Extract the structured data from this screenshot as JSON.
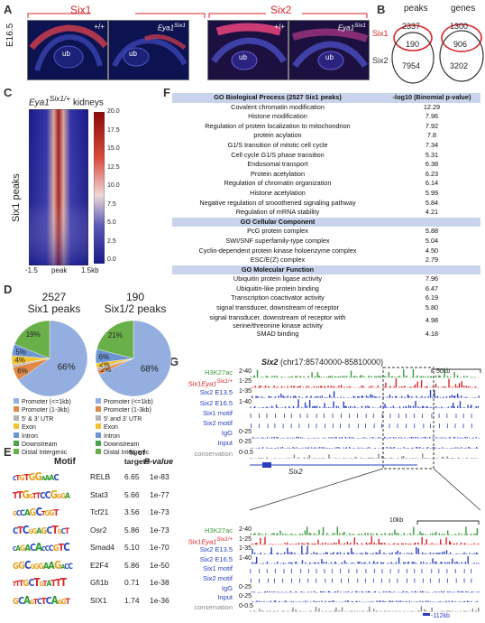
{
  "panels": {
    "A": "A",
    "B": "B",
    "C": "C",
    "D": "D",
    "E": "E",
    "F": "F",
    "G": "G"
  },
  "panelA": {
    "stage": "E16.5",
    "six1_label": "Six1",
    "six2_label": "Six2",
    "wt": "+/+",
    "mut_prefix": "Eya1",
    "mut_sup": "Six1",
    "ub": "ub"
  },
  "panelB": {
    "peaks_title": "peaks",
    "genes_title": "genes",
    "six1_label": "Six1",
    "six2_label": "Six2",
    "peaks": {
      "six1_only": "2337",
      "overlap": "190",
      "six2_only": "7954"
    },
    "genes": {
      "six1_only": "1300",
      "overlap": "906",
      "six2_only": "3202"
    }
  },
  "panelC": {
    "title_prefix": "Eya1",
    "title_sup": "Six1/+",
    "title_suffix": " kidneys",
    "ylabel": "Six1 peaks",
    "x_left": "-1.5",
    "x_mid": "peak",
    "x_right": "1.5kb",
    "colorbar_ticks": [
      "20.0",
      "17.5",
      "15.0",
      "12.5",
      "10.0",
      "7.5",
      "5.0",
      "2.5",
      "0.0"
    ]
  },
  "chart_data": [
    {
      "type": "pie",
      "title": "2527 Six1 peaks",
      "title_num": "2527",
      "title_text": "Six1 peaks",
      "categories": [
        "Promoter (<=1kb)",
        "Promoter (1-3kb)",
        "5' & 3' UTR",
        "Exon",
        "Intron",
        "Downstream",
        "Distal Intergenic"
      ],
      "values": [
        66,
        6,
        1,
        4,
        5,
        0,
        19
      ],
      "labels": [
        "66%",
        "6%",
        "",
        "4%",
        "5%",
        "",
        "19%"
      ],
      "colors": [
        "#94aee0",
        "#e2894a",
        "#b3b3b3",
        "#f2c230",
        "#6d95d4",
        "#4aa24a",
        "#6ab04a"
      ]
    },
    {
      "type": "pie",
      "title": "190 Six1/2 peaks",
      "title_num": "190",
      "title_text": "Six1/2 peaks",
      "categories": [
        "Promoter (<=1kb)",
        "Promoter (1-3kb)",
        "5' and 3' UTR",
        "Exon",
        "Intron",
        "Downstream",
        "Distal Intergenic"
      ],
      "values": [
        68,
        2,
        1,
        2,
        6,
        0,
        21
      ],
      "labels": [
        "68%",
        "2%",
        "",
        "2%",
        "6%",
        "",
        "21%"
      ],
      "colors": [
        "#94aee0",
        "#e2894a",
        "#b3b3b3",
        "#f2c230",
        "#6d95d4",
        "#4aa24a",
        "#6ab04a"
      ]
    }
  ],
  "legend1": [
    "Promoter (<=1kb)",
    "Promoter (1-3kb)",
    "5' & 3' UTR",
    "Exon",
    "Intron",
    "Downstream",
    "Distal Intergenic"
  ],
  "legend2": [
    "Promoter (<=1kb)",
    "Promoter (1-3kb)",
    "5' and 3' UTR",
    "Exon",
    "Intron",
    "Downstream",
    "Distal Intergenic"
  ],
  "panelE": {
    "headers": {
      "motif": "Motif",
      "pct1": "% of",
      "pct2": "targets",
      "pval": "P-value"
    },
    "rows": [
      {
        "logo": "CTGTGGAAAC",
        "name": "RELB",
        "pct": "6.65",
        "p": "1e-83"
      },
      {
        "logo": "TTGGTTCCGGGA",
        "name": "Stat3",
        "pct": "5.66",
        "p": "1e-77"
      },
      {
        "logo": "GCCAGCTGGT",
        "name": "Tcf21",
        "pct": "3.56",
        "p": "1e-73"
      },
      {
        "logo": "CTCGGAGCTGCT",
        "name": "Osr2",
        "pct": "5.86",
        "p": "1e-73"
      },
      {
        "logo": "CAGACACCCGTC",
        "name": "Smad4",
        "pct": "5.10",
        "p": "1e-70"
      },
      {
        "logo": "GGCGGGAAGACC",
        "name": "E2F4",
        "pct": "5.86",
        "p": "1e-50"
      },
      {
        "logo": "TTTGCTGTATTT",
        "name": "Gfi1b",
        "pct": "0.71",
        "p": "1e-38"
      },
      {
        "logo": "GCAGTCTCAGGT",
        "name": "SIX1",
        "pct": "1.74",
        "p": "1e-36"
      }
    ]
  },
  "panelF": {
    "header_term": "GO Biological Process (2527 Six1 peaks)",
    "header_val": "-log10 (Binomial p-value)",
    "rows": [
      {
        "term": "Covalent chromatin modification",
        "val": "12.29"
      },
      {
        "term": "Histone modification",
        "val": "7.96"
      },
      {
        "term": "Regulation of protein localization to mitochondrion",
        "val": "7.92"
      },
      {
        "term": "protein acylation",
        "val": "7.8"
      },
      {
        "term": "G1/S transition of mitotic cell cycle",
        "val": "7.34"
      },
      {
        "term": "Cell cycle G1/S phase transition",
        "val": "5.31"
      },
      {
        "term": "Endosomal transport",
        "val": "6.38"
      },
      {
        "term": "Protein acetylation",
        "val": "6.23"
      },
      {
        "term": "Regulation of chromatin organization",
        "val": "6.14"
      },
      {
        "term": "Histone acetylation",
        "val": "5.99"
      },
      {
        "term": "Negative regulation of smoothened signaling pathway",
        "val": "5.84"
      },
      {
        "term": "Regulation of mRNA stability",
        "val": "4.21"
      },
      {
        "term": "GO Cellular Component",
        "val": "",
        "section": true
      },
      {
        "term": "PcG protein complex",
        "val": "5.88"
      },
      {
        "term": "SWI/SNF superfamily-type complex",
        "val": "5.04"
      },
      {
        "term": "Cyclin-dependent protein kinase holoenzyme complex",
        "val": "4.50"
      },
      {
        "term": "ESC/E(Z) complex",
        "val": "2.79"
      },
      {
        "term": "GO Molecular Function",
        "val": "",
        "section": true
      },
      {
        "term": "Ubiquitin protein ligase activity",
        "val": "7.96"
      },
      {
        "term": "Ubiquitin-like protein binding",
        "val": "6.47"
      },
      {
        "term": "Transcription coactivator activity",
        "val": "6.19"
      },
      {
        "term": "signal transducer, downstream of receptor",
        "val": "5.80"
      },
      {
        "term": "signal transducer, downstream of receptor with",
        "term2": "serine/threonine kinase activity",
        "val": "4.98"
      },
      {
        "term": "SMAD binding",
        "val": "4.18"
      }
    ]
  },
  "panelG": {
    "gene": "Six2",
    "coords": " (chr17:85740000-85810000)",
    "scale_top": "50kb",
    "scale_bottom": "10kb",
    "gene_label": "Six2",
    "enh_label": "-112kb",
    "tracks": [
      {
        "name": "H3K27ac",
        "range": "2-40",
        "color": "#3a9a3a"
      },
      {
        "name": "Six1",
        "italic": "Eya1",
        "sup": "Six1/+",
        "range": "1-25",
        "color": "#d8262a"
      },
      {
        "name": "Six2 E13.5",
        "range": "1-35",
        "color": "#2a3fc0"
      },
      {
        "name": "Six2 E16.5",
        "range": "1-40",
        "color": "#2a3fc0"
      },
      {
        "name": "Six1 motif",
        "range": "",
        "color": "#2a3fc0"
      },
      {
        "name": "Six2 motif",
        "range": "",
        "color": "#2a3fc0"
      },
      {
        "name": "IgG",
        "range": "0-25",
        "color": "#2a3fc0"
      },
      {
        "name": "Input",
        "range": "0-25",
        "color": "#2a3fc0"
      },
      {
        "name": "conservation",
        "range": "0-0.5",
        "color": "#888"
      }
    ]
  }
}
